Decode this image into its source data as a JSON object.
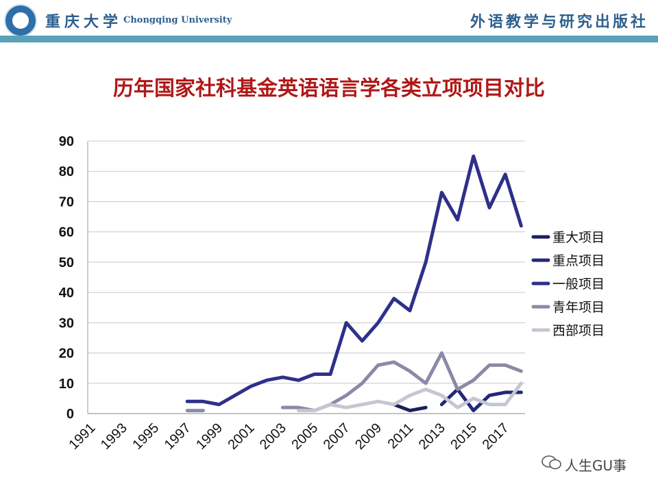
{
  "header": {
    "university_cn": "重庆大学",
    "university_en": "Chongqing University",
    "publisher": "外语教学与研究出版社"
  },
  "watermark": "人生GU事",
  "chart_data": {
    "type": "line",
    "title": "历年国家社科基金英语语言学各类立项项目对比",
    "xlabel": "",
    "ylabel": "",
    "ylim": [
      0,
      90
    ],
    "yticks": [
      0,
      10,
      20,
      30,
      40,
      50,
      60,
      70,
      80,
      90
    ],
    "x": [
      1991,
      1992,
      1993,
      1994,
      1995,
      1996,
      1997,
      1998,
      1999,
      2000,
      2001,
      2002,
      2003,
      2004,
      2005,
      2006,
      2007,
      2008,
      2009,
      2010,
      2011,
      2012,
      2013,
      2014,
      2015,
      2016,
      2017,
      2018
    ],
    "xtick_labels": [
      "1991",
      "1993",
      "1995",
      "1997",
      "1999",
      "2001",
      "2003",
      "2005",
      "2007",
      "2009",
      "2011",
      "2013",
      "2015",
      "2017"
    ],
    "grid": true,
    "legend_position": "right",
    "series": [
      {
        "name": "重大项目",
        "color": "#1b1f5e",
        "values": [
          null,
          null,
          null,
          null,
          null,
          null,
          null,
          null,
          null,
          null,
          null,
          null,
          null,
          null,
          null,
          null,
          null,
          null,
          null,
          3,
          1,
          2,
          null,
          null,
          null,
          null,
          null,
          null
        ]
      },
      {
        "name": "重点项目",
        "color": "#23287a",
        "values": [
          null,
          null,
          null,
          null,
          null,
          null,
          null,
          null,
          null,
          null,
          null,
          null,
          null,
          null,
          null,
          null,
          null,
          null,
          null,
          null,
          null,
          null,
          3,
          8,
          1,
          6,
          7,
          7
        ]
      },
      {
        "name": "一般项目",
        "color": "#2e3189",
        "values": [
          null,
          null,
          null,
          null,
          null,
          null,
          4,
          4,
          3,
          6,
          9,
          11,
          12,
          11,
          13,
          13,
          30,
          24,
          30,
          38,
          34,
          50,
          73,
          64,
          85,
          68,
          79,
          62
        ]
      },
      {
        "name": "青年项目",
        "color": "#8a8aa6",
        "values": [
          null,
          null,
          null,
          null,
          null,
          null,
          1,
          1,
          null,
          null,
          null,
          null,
          2,
          2,
          1,
          3,
          6,
          10,
          16,
          17,
          14,
          10,
          20,
          8,
          11,
          16,
          16,
          14
        ]
      },
      {
        "name": "西部项目",
        "color": "#c4c6d2",
        "values": [
          null,
          null,
          null,
          null,
          null,
          null,
          null,
          null,
          null,
          null,
          null,
          null,
          null,
          1,
          1,
          3,
          2,
          3,
          4,
          3,
          6,
          8,
          6,
          2,
          5,
          3,
          3,
          10
        ]
      }
    ]
  }
}
